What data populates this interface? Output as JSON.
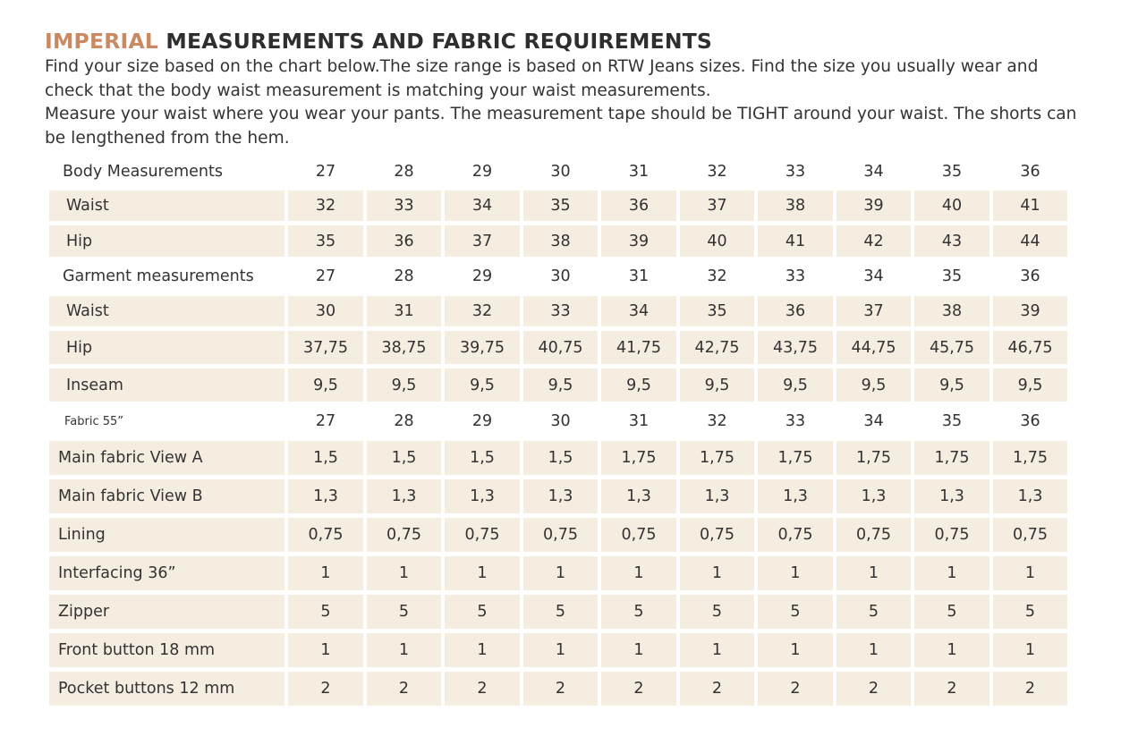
{
  "title": {
    "accent": "IMPERIAL",
    "rest": " MEASUREMENTS AND FABRIC REQUIREMENTS"
  },
  "intro": {
    "paragraph1": "Find your size based on the chart below.The size range is based on RTW Jeans sizes. Find the size you usually wear and check that the body waist measurement is matching your waist measurements.",
    "paragraph2": "Measure your waist where you wear your pants. The measurement tape should be TIGHT around your waist. The shorts can be lengthened from the hem."
  },
  "table": {
    "sections": [
      {
        "header": "Body Measurements",
        "sizes": [
          "27",
          "28",
          "29",
          "30",
          "31",
          "32",
          "33",
          "34",
          "35",
          "36"
        ],
        "rows": [
          {
            "label": "Waist",
            "values": [
              "32",
              "33",
              "34",
              "35",
              "36",
              "37",
              "38",
              "39",
              "40",
              "41"
            ]
          },
          {
            "label": "Hip",
            "values": [
              "35",
              "36",
              "37",
              "38",
              "39",
              "40",
              "41",
              "42",
              "43",
              "44"
            ]
          }
        ]
      },
      {
        "header": "Garment measurements",
        "sizes": [
          "27",
          "28",
          "29",
          "30",
          "31",
          "32",
          "33",
          "34",
          "35",
          "36"
        ],
        "rows": [
          {
            "label": "Waist",
            "values": [
              "30",
              "31",
              "32",
              "33",
              "34",
              "35",
              "36",
              "37",
              "38",
              "39"
            ]
          },
          {
            "label": "Hip",
            "values": [
              "37,75",
              "38,75",
              "39,75",
              "40,75",
              "41,75",
              "42,75",
              "43,75",
              "44,75",
              "45,75",
              "46,75"
            ]
          },
          {
            "label": "Inseam",
            "values": [
              "9,5",
              "9,5",
              "9,5",
              "9,5",
              "9,5",
              "9,5",
              "9,5",
              "9,5",
              "9,5",
              "9,5"
            ]
          }
        ]
      },
      {
        "header": "Fabric 55”",
        "sizes": [
          "27",
          "28",
          "29",
          "30",
          "31",
          "32",
          "33",
          "34",
          "35",
          "36"
        ],
        "rows": [
          {
            "label": "Main fabric View A",
            "values": [
              "1,5",
              "1,5",
              "1,5",
              "1,5",
              "1,75",
              "1,75",
              "1,75",
              "1,75",
              "1,75",
              "1,75"
            ]
          },
          {
            "label": "Main fabric View B",
            "values": [
              "1,3",
              "1,3",
              "1,3",
              "1,3",
              "1,3",
              "1,3",
              "1,3",
              "1,3",
              "1,3",
              "1,3"
            ]
          },
          {
            "label": "Lining",
            "values": [
              "0,75",
              "0,75",
              "0,75",
              "0,75",
              "0,75",
              "0,75",
              "0,75",
              "0,75",
              "0,75",
              "0,75"
            ]
          },
          {
            "label": "Interfacing  36”",
            "values": [
              "1",
              "1",
              "1",
              "1",
              "1",
              "1",
              "1",
              "1",
              "1",
              "1"
            ]
          },
          {
            "label": "Zipper",
            "values": [
              "5",
              "5",
              "5",
              "5",
              "5",
              "5",
              "5",
              "5",
              "5",
              "5"
            ]
          },
          {
            "label": "Front button 18 mm",
            "values": [
              "1",
              "1",
              "1",
              "1",
              "1",
              "1",
              "1",
              "1",
              "1",
              "1"
            ]
          },
          {
            "label": "Pocket buttons 12 mm",
            "values": [
              "2",
              "2",
              "2",
              "2",
              "2",
              "2",
              "2",
              "2",
              "2",
              "2"
            ]
          }
        ]
      }
    ]
  },
  "colors": {
    "accent": "#c98a63",
    "cell_background": "#f4ede0",
    "text": "#333333"
  }
}
